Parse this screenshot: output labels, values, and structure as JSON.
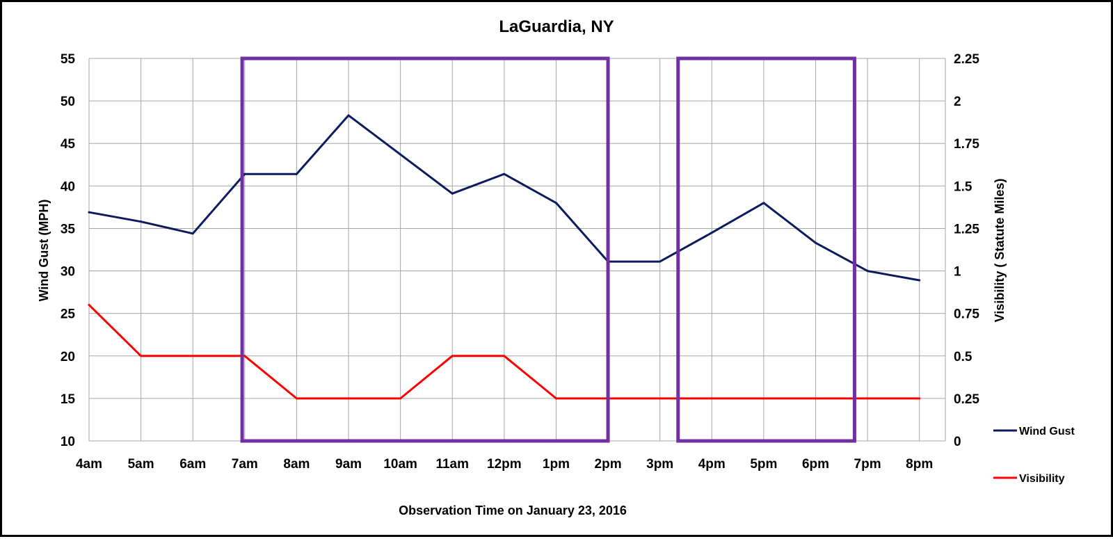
{
  "chart_data": {
    "type": "line",
    "title": "LaGuardia, NY",
    "xlabel": "Observation Time on January 23, 2016",
    "ylabel": "Wind Gust (MPH)",
    "y2label": "Visibility ( Statute Miles)",
    "categories": [
      "4am",
      "5am",
      "6am",
      "7am",
      "8am",
      "9am",
      "10am",
      "11am",
      "12pm",
      "1pm",
      "2pm",
      "3pm",
      "4pm",
      "5pm",
      "6pm",
      "7pm",
      "8pm"
    ],
    "ylim": [
      10,
      55
    ],
    "yticks": [
      10,
      15,
      20,
      25,
      30,
      35,
      40,
      45,
      50,
      55
    ],
    "y2lim": [
      0,
      2.25
    ],
    "y2ticks": [
      "0",
      "0.25",
      "0.5",
      "0.75",
      "1",
      "1.25",
      "1.5",
      "1.75",
      "2",
      "2.25"
    ],
    "grid": true,
    "legend_position": "right",
    "series": [
      {
        "name": "Wind Gust",
        "axis": "left",
        "color": "#0d1b5e",
        "values": [
          36.9,
          35.8,
          34.4,
          41.4,
          41.4,
          48.3,
          43.7,
          39.1,
          41.4,
          38.0,
          31.1,
          31.1,
          34.5,
          38.0,
          33.3,
          30.0,
          28.9
        ]
      },
      {
        "name": "Visibility",
        "axis": "right",
        "color": "#ff0000",
        "values": [
          0.8,
          0.5,
          0.5,
          0.5,
          0.25,
          0.25,
          0.25,
          0.5,
          0.5,
          0.25,
          0.25,
          0.25,
          0.25,
          0.25,
          0.25,
          0.25,
          0.25
        ]
      }
    ],
    "highlight_boxes": [
      {
        "from": 2.95,
        "to": 10.0,
        "color": "#7030a0"
      },
      {
        "from": 11.35,
        "to": 14.75,
        "color": "#7030a0"
      }
    ]
  }
}
